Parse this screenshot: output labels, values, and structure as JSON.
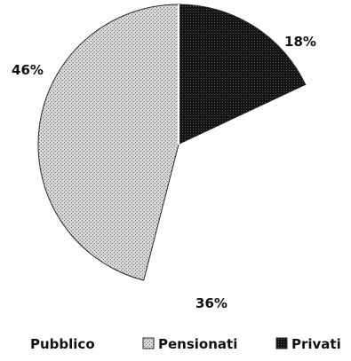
{
  "chart_data": {
    "type": "pie",
    "slices": [
      {
        "name": "Privati",
        "value": 18,
        "label": "18%",
        "pattern": "dense-dark",
        "color": "#1a1a1a"
      },
      {
        "name": "Pubblico",
        "value": 36,
        "label": "36%",
        "pattern": "none",
        "color": "#ffffff"
      },
      {
        "name": "Pensionati",
        "value": 46,
        "label": "46%",
        "pattern": "light-stipple",
        "color": "#c8c8c8"
      }
    ],
    "legend": {
      "position": "bottom",
      "items": [
        {
          "name": "Pubblico",
          "swatch": "none"
        },
        {
          "name": "Pensionati",
          "swatch": "light-stipple"
        },
        {
          "name": "Privati",
          "swatch": "dense-dark"
        }
      ]
    },
    "start_angle": "12 o'clock",
    "direction": "clockwise"
  }
}
